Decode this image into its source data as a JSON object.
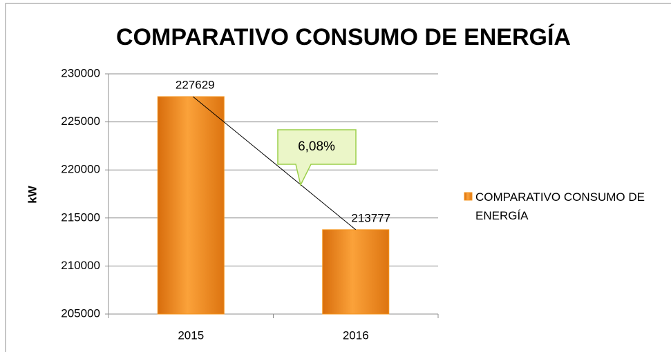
{
  "chart_data": {
    "type": "bar",
    "title": "COMPARATIVO CONSUMO DE ENERGÍA",
    "y_label": "kW",
    "categories": [
      "2015",
      "2016"
    ],
    "series": [
      {
        "name": "COMPARATIVO CONSUMO DE ENERGÍA",
        "color": "#f5961f",
        "values": [
          227629,
          213777
        ]
      }
    ],
    "ylim": [
      205000,
      230000
    ],
    "yticks": [
      205000,
      210000,
      215000,
      220000,
      225000,
      230000
    ],
    "grid": true,
    "legend": "right",
    "annotation": "6,08%",
    "trend_line": true
  }
}
